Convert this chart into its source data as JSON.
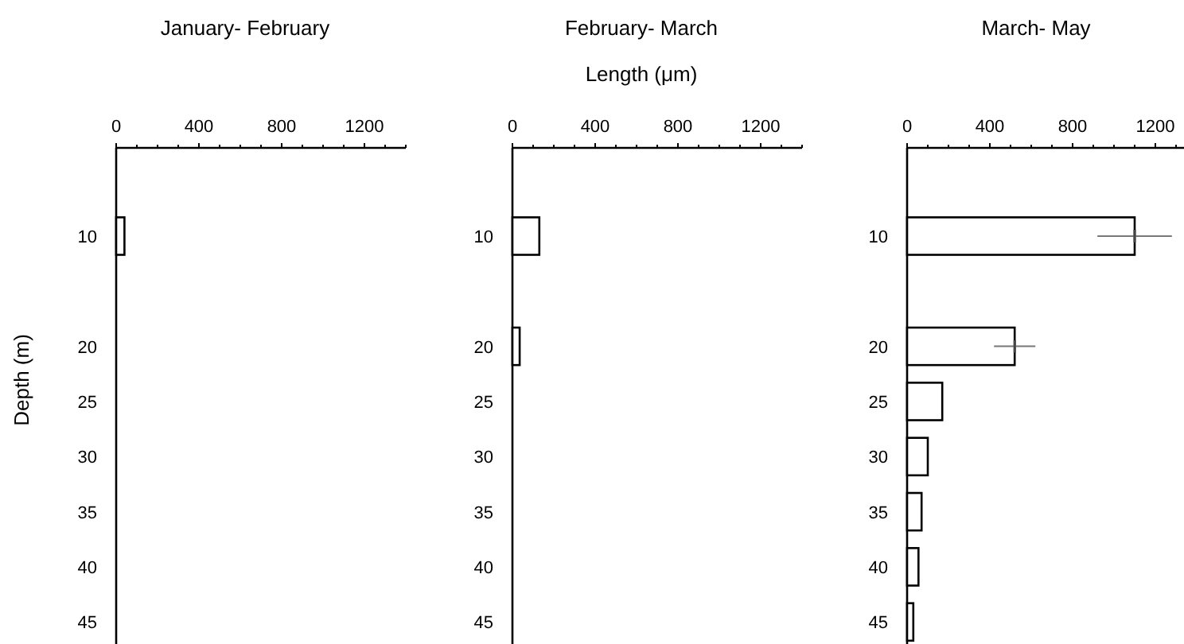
{
  "chart_data": [
    {
      "type": "bar",
      "orientation": "horizontal",
      "title": "January- February",
      "ylabel": "Depth (m)",
      "x": [
        10
      ],
      "series": [
        {
          "color": "#ffffff",
          "values": [
            40
          ]
        }
      ],
      "xlim": [
        0,
        1400
      ],
      "xticks": [
        0,
        {
          "value": 100,
          "label": null
        },
        {
          "value": 200,
          "label": null
        },
        {
          "value": 300,
          "label": null
        },
        400,
        {
          "value": 500,
          "label": null
        },
        {
          "value": 600,
          "label": null
        },
        {
          "value": 700,
          "label": null
        },
        800,
        {
          "value": 900,
          "label": null
        },
        {
          "value": 1000,
          "label": null
        },
        {
          "value": 1100,
          "label": null
        },
        1200,
        {
          "value": 1300,
          "label": null
        },
        {
          "value": 1400,
          "label": null
        }
      ],
      "ylim": [
        47,
        2
      ],
      "yticks": [
        10,
        20,
        25,
        30,
        35,
        40,
        45
      ]
    },
    {
      "type": "bar",
      "orientation": "horizontal",
      "title": "February- March",
      "xlabel": "Length (μm)",
      "x": [
        10,
        20
      ],
      "series": [
        {
          "color": "#ffffff",
          "values": [
            130,
            35
          ]
        }
      ],
      "xlim": [
        0,
        1400
      ],
      "xticks": [
        0,
        {
          "value": 100,
          "label": null
        },
        {
          "value": 200,
          "label": null
        },
        {
          "value": 300,
          "label": null
        },
        400,
        {
          "value": 500,
          "label": null
        },
        {
          "value": 600,
          "label": null
        },
        {
          "value": 700,
          "label": null
        },
        800,
        {
          "value": 900,
          "label": null
        },
        {
          "value": 1000,
          "label": null
        },
        {
          "value": 1100,
          "label": null
        },
        1200,
        {
          "value": 1300,
          "label": null
        },
        {
          "value": 1400,
          "label": null
        }
      ],
      "ylim": [
        47,
        2
      ],
      "yticks": [
        10,
        20,
        25,
        30,
        35,
        40,
        45
      ]
    },
    {
      "type": "bar",
      "orientation": "horizontal",
      "title": "March- May",
      "x": [
        10,
        20,
        25,
        30,
        35,
        40,
        45
      ],
      "series": [
        {
          "color": "#ffffff",
          "values": [
            1100,
            520,
            170,
            100,
            70,
            55,
            30
          ],
          "errors": [
            180,
            100,
            null,
            null,
            null,
            null,
            null
          ]
        }
      ],
      "xlim": [
        0,
        1400
      ],
      "xticks": [
        0,
        {
          "value": 100,
          "label": null
        },
        {
          "value": 200,
          "label": null
        },
        {
          "value": 300,
          "label": null
        },
        400,
        {
          "value": 500,
          "label": null
        },
        {
          "value": 600,
          "label": null
        },
        {
          "value": 700,
          "label": null
        },
        800,
        {
          "value": 900,
          "label": null
        },
        {
          "value": 1000,
          "label": null
        },
        {
          "value": 1100,
          "label": null
        },
        1200,
        {
          "value": 1300,
          "label": null
        },
        {
          "value": 1400,
          "label": null
        }
      ],
      "ylim": [
        47,
        2
      ],
      "yticks": [
        10,
        20,
        25,
        30,
        35,
        40,
        45
      ]
    }
  ]
}
